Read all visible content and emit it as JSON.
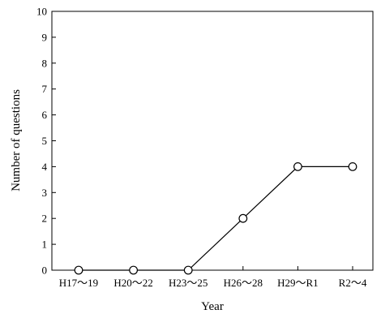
{
  "chart_data": {
    "type": "line",
    "title": "",
    "xlabel": "Year",
    "ylabel": "Number of questions",
    "categories": [
      "H17～19",
      "H20～22",
      "H23～25",
      "H26～28",
      "H29～R1",
      "R2～4"
    ],
    "series": [
      {
        "values": [
          0,
          0,
          0,
          2,
          4,
          4
        ]
      }
    ],
    "ylim": [
      0,
      10
    ],
    "yticks": [
      0,
      1,
      2,
      3,
      4,
      5,
      6,
      7,
      8,
      9,
      10
    ],
    "grid": false,
    "legend": "none",
    "line_color": "#000000",
    "marker": "open-circle"
  }
}
